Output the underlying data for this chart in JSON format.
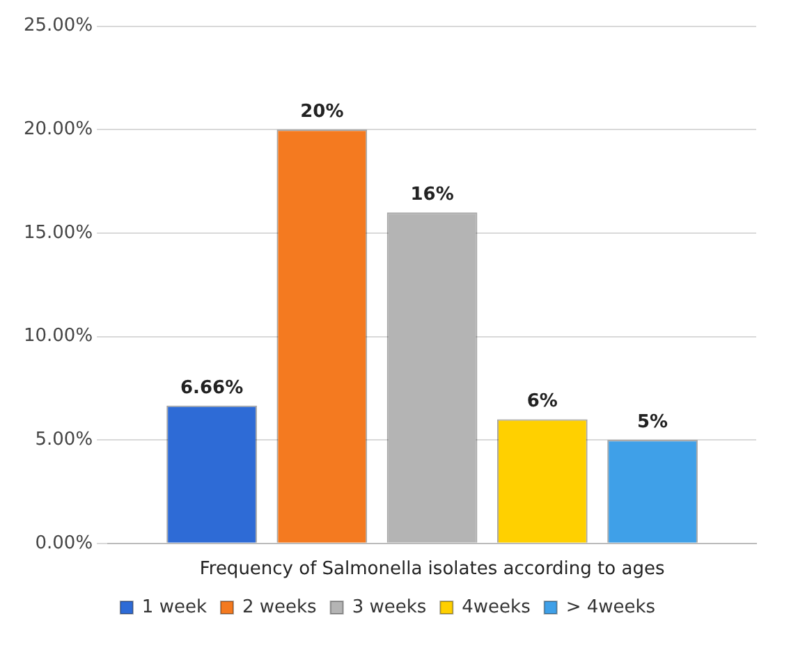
{
  "chart_data": {
    "type": "bar",
    "categories": [
      "Frequency of Salmonella isolates according to ages"
    ],
    "series": [
      {
        "name": "1 week",
        "color": "#2e6bd6",
        "values": [
          6.66
        ],
        "value_labels": [
          "6.66%"
        ]
      },
      {
        "name": "2 weeks",
        "color": "#f47a20",
        "values": [
          20
        ],
        "value_labels": [
          "20%"
        ]
      },
      {
        "name": "3 weeks",
        "color": "#b4b4b4",
        "values": [
          16
        ],
        "value_labels": [
          "16%"
        ]
      },
      {
        "name": "4weeks",
        "color": "#ffd000",
        "values": [
          6
        ],
        "value_labels": [
          "6%"
        ]
      },
      {
        "name": "> 4weeks",
        "color": "#3fa0e8",
        "values": [
          5
        ],
        "value_labels": [
          "5%"
        ]
      }
    ],
    "ylim": [
      0,
      25
    ],
    "yticks": [
      {
        "value": 0,
        "label": "0.00%"
      },
      {
        "value": 5,
        "label": "5.00%"
      },
      {
        "value": 10,
        "label": "10.00%"
      },
      {
        "value": 15,
        "label": "15.00%"
      },
      {
        "value": 20,
        "label": "20.00%"
      },
      {
        "value": 25,
        "label": "25.00%"
      }
    ],
    "grid": "y",
    "legend": "bottom"
  }
}
